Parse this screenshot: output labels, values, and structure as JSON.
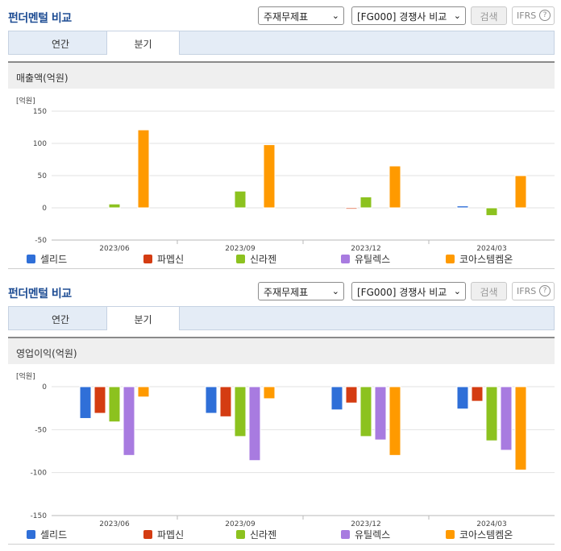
{
  "header": {
    "title": "펀더멘털 비교",
    "select_statement": "주재무제표",
    "select_compare": "[FG000] 경쟁사 비교",
    "search_label": "검색",
    "ifrs_label": "IFRS",
    "ifrs_help": "?"
  },
  "tabs": [
    "연간",
    "분기"
  ],
  "active_tab": "분기",
  "legend_colors": [
    "#2f6fd8",
    "#d43c12",
    "#8cc21f",
    "#a87be0",
    "#ff9a00"
  ],
  "chart_data": [
    {
      "type": "bar",
      "title": "매출액(억원)",
      "unit_label": "[억원]",
      "categories": [
        "2023/06",
        "2023/09",
        "2023/12",
        "2024/03"
      ],
      "ylim": [
        -50,
        150
      ],
      "yticks": [
        150,
        100,
        50,
        0,
        -50
      ],
      "grid": true,
      "series": [
        {
          "name": "셀리드",
          "values": [
            null,
            null,
            null,
            3
          ]
        },
        {
          "name": "파멥신",
          "values": [
            null,
            null,
            -2,
            null
          ]
        },
        {
          "name": "신라젠",
          "values": [
            6,
            26,
            17,
            -12
          ]
        },
        {
          "name": "유틸렉스",
          "values": [
            null,
            null,
            null,
            null
          ]
        },
        {
          "name": "코아스템켐온",
          "values": [
            121,
            98,
            65,
            50
          ]
        }
      ]
    },
    {
      "type": "bar",
      "title": "영업이익(억원)",
      "unit_label": "[억원]",
      "categories": [
        "2023/06",
        "2023/09",
        "2023/12",
        "2024/03"
      ],
      "ylim": [
        -150,
        0
      ],
      "yticks": [
        0,
        -50,
        -100,
        -150
      ],
      "grid": true,
      "series": [
        {
          "name": "셀리드",
          "values": [
            -37,
            -31,
            -27,
            -26
          ]
        },
        {
          "name": "파멥신",
          "values": [
            -31,
            -35,
            -19,
            -17
          ]
        },
        {
          "name": "신라젠",
          "values": [
            -41,
            -58,
            -58,
            -63
          ]
        },
        {
          "name": "유틸렉스",
          "values": [
            -80,
            -86,
            -62,
            -74
          ]
        },
        {
          "name": "코아스템켐온",
          "values": [
            -12,
            -14,
            -80,
            -97
          ]
        }
      ]
    }
  ]
}
